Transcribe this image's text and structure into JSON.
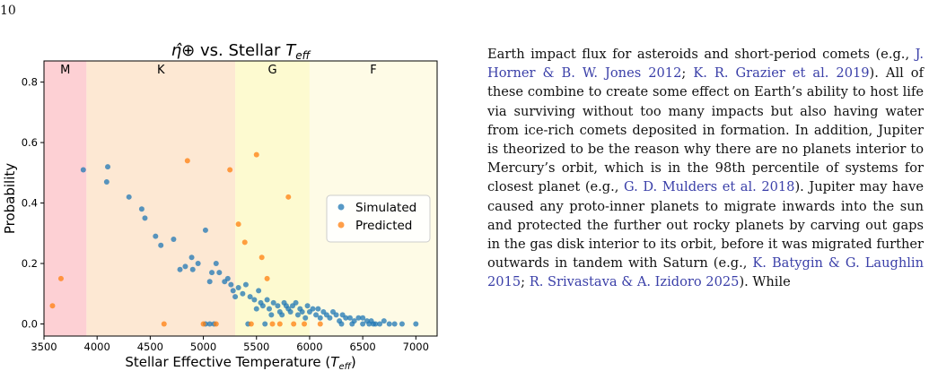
{
  "page_number": "10",
  "chart_data": {
    "type": "scatter",
    "title": "η̂⊕ vs. Stellar T_eff",
    "xlabel": "Stellar Effective Temperature (T_eff)",
    "ylabel": "Probability",
    "xlim": [
      3500,
      7200
    ],
    "ylim": [
      -0.04,
      0.87
    ],
    "xticks": [
      3500,
      4000,
      4500,
      5000,
      5500,
      6000,
      6500,
      7000
    ],
    "yticks": [
      0.0,
      0.2,
      0.4,
      0.6,
      0.8
    ],
    "grid": false,
    "legend": "center-right",
    "bands": [
      {
        "label": "M",
        "x0": 3500,
        "x1": 3900,
        "color": "#fdd0d4"
      },
      {
        "label": "K",
        "x0": 3900,
        "x1": 5300,
        "color": "#fde8d3"
      },
      {
        "label": "G",
        "x0": 5300,
        "x1": 6000,
        "color": "#fdfad0"
      },
      {
        "label": "F",
        "x0": 6000,
        "x1": 7200,
        "color": "#fefbe6"
      }
    ],
    "series": [
      {
        "name": "Simulated",
        "color": "#1f77b4",
        "points": [
          [
            3870,
            0.51
          ],
          [
            4100,
            0.52
          ],
          [
            4090,
            0.47
          ],
          [
            4300,
            0.42
          ],
          [
            4420,
            0.38
          ],
          [
            4450,
            0.35
          ],
          [
            4550,
            0.29
          ],
          [
            4600,
            0.26
          ],
          [
            4720,
            0.28
          ],
          [
            4780,
            0.18
          ],
          [
            4830,
            0.19
          ],
          [
            4900,
            0.18
          ],
          [
            4890,
            0.22
          ],
          [
            4950,
            0.2
          ],
          [
            5020,
            0.31
          ],
          [
            5060,
            0.14
          ],
          [
            5080,
            0.17
          ],
          [
            5120,
            0.2
          ],
          [
            5150,
            0.17
          ],
          [
            5200,
            0.14
          ],
          [
            5230,
            0.15
          ],
          [
            5260,
            0.13
          ],
          [
            5280,
            0.11
          ],
          [
            5300,
            0.09
          ],
          [
            5330,
            0.12
          ],
          [
            5370,
            0.1
          ],
          [
            5400,
            0.13
          ],
          [
            5440,
            0.09
          ],
          [
            5480,
            0.08
          ],
          [
            5500,
            0.05
          ],
          [
            5520,
            0.11
          ],
          [
            5540,
            0.07
          ],
          [
            5560,
            0.06
          ],
          [
            5600,
            0.08
          ],
          [
            5620,
            0.05
          ],
          [
            5640,
            0.03
          ],
          [
            5660,
            0.07
          ],
          [
            5700,
            0.06
          ],
          [
            5720,
            0.04
          ],
          [
            5740,
            0.03
          ],
          [
            5760,
            0.07
          ],
          [
            5780,
            0.06
          ],
          [
            5800,
            0.05
          ],
          [
            5820,
            0.04
          ],
          [
            5840,
            0.06
          ],
          [
            5870,
            0.07
          ],
          [
            5890,
            0.03
          ],
          [
            5910,
            0.05
          ],
          [
            5930,
            0.04
          ],
          [
            5960,
            0.02
          ],
          [
            5980,
            0.06
          ],
          [
            6000,
            0.04
          ],
          [
            6030,
            0.05
          ],
          [
            6060,
            0.03
          ],
          [
            6080,
            0.05
          ],
          [
            6100,
            0.02
          ],
          [
            6130,
            0.04
          ],
          [
            6160,
            0.03
          ],
          [
            6190,
            0.02
          ],
          [
            6220,
            0.04
          ],
          [
            6250,
            0.03
          ],
          [
            6280,
            0.01
          ],
          [
            6310,
            0.03
          ],
          [
            6340,
            0.02
          ],
          [
            6380,
            0.02
          ],
          [
            6420,
            0.01
          ],
          [
            6460,
            0.02
          ],
          [
            6500,
            0.02
          ],
          [
            6540,
            0.01
          ],
          [
            6580,
            0.01
          ],
          [
            6620,
            0.0
          ],
          [
            6660,
            0.0
          ],
          [
            6700,
            0.01
          ],
          [
            6750,
            0.0
          ],
          [
            6800,
            0.0
          ],
          [
            6870,
            0.0
          ],
          [
            7000,
            0.0
          ],
          [
            5020,
            0.0
          ],
          [
            5060,
            0.0
          ],
          [
            5100,
            0.0
          ],
          [
            5420,
            0.0
          ],
          [
            5580,
            0.0
          ],
          [
            6300,
            0.0
          ],
          [
            6400,
            0.0
          ],
          [
            6500,
            0.0
          ],
          [
            6560,
            0.0
          ],
          [
            6600,
            0.0
          ]
        ]
      },
      {
        "name": "Predicted",
        "color": "#ff7f0e",
        "points": [
          [
            3580,
            0.06
          ],
          [
            3660,
            0.15
          ],
          [
            4630,
            0.0
          ],
          [
            4850,
            0.54
          ],
          [
            5000,
            0.0
          ],
          [
            5120,
            0.0
          ],
          [
            5250,
            0.51
          ],
          [
            5330,
            0.33
          ],
          [
            5390,
            0.27
          ],
          [
            5450,
            0.0
          ],
          [
            5500,
            0.56
          ],
          [
            5550,
            0.22
          ],
          [
            5600,
            0.15
          ],
          [
            5650,
            0.0
          ],
          [
            5800,
            0.42
          ],
          [
            5720,
            0.0
          ],
          [
            5850,
            0.0
          ],
          [
            5950,
            0.0
          ],
          [
            6100,
            0.0
          ]
        ]
      }
    ]
  },
  "paragraph": [
    {
      "t": "Earth impact flux for asteroids and short-period comets (e.g., "
    },
    {
      "t": "J. Horner & B. W. Jones 2012",
      "cite": true
    },
    {
      "t": "; "
    },
    {
      "t": "K. R. Grazier et al. 2019",
      "cite": true
    },
    {
      "t": "). All of these combine to create some effect on Earth’s ability to host life via surviving without too many impacts but also having water from ice-rich comets deposited in formation. In addition, Jupiter is theorized to be the reason why there are no planets interior to Mercury’s orbit, which is in the 98th percentile of systems for closest planet (e.g., "
    },
    {
      "t": "G. D. Mulders et al. 2018",
      "cite": true
    },
    {
      "t": "). Jupiter may have caused any proto-inner planets to migrate inwards into the sun and protected the further out rocky planets by carving out gaps in the gas disk interior to its orbit, before it was migrated further outwards in tandem with Saturn (e.g., "
    },
    {
      "t": "K. Batygin & G. Laughlin 2015",
      "cite": true
    },
    {
      "t": "; "
    },
    {
      "t": "R. Srivastava & A. Izidoro 2025",
      "cite": true
    },
    {
      "t": "). While"
    }
  ]
}
